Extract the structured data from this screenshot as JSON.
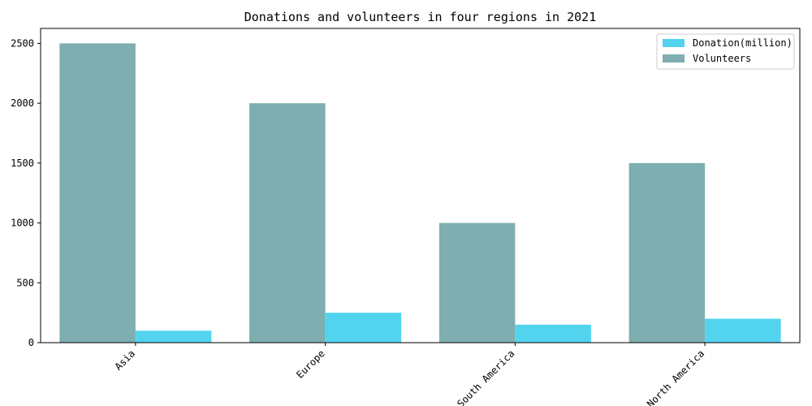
{
  "chart_data": {
    "type": "bar",
    "title": "Donations and volunteers in four regions in 2021",
    "categories": [
      "Asia",
      "Europe",
      "South America",
      "North America"
    ],
    "series": [
      {
        "name": "Donation(million)",
        "color": "#52d4ef",
        "values": [
          100,
          250,
          150,
          200
        ]
      },
      {
        "name": "Volunteers",
        "color": "#7eaeaf",
        "values": [
          2500,
          2000,
          1000,
          1500
        ]
      }
    ],
    "ylim": [
      0,
      2625
    ],
    "yticks": [
      0,
      500,
      1000,
      1500,
      2000,
      2500
    ],
    "grid": false,
    "legend_position": "top-right"
  }
}
